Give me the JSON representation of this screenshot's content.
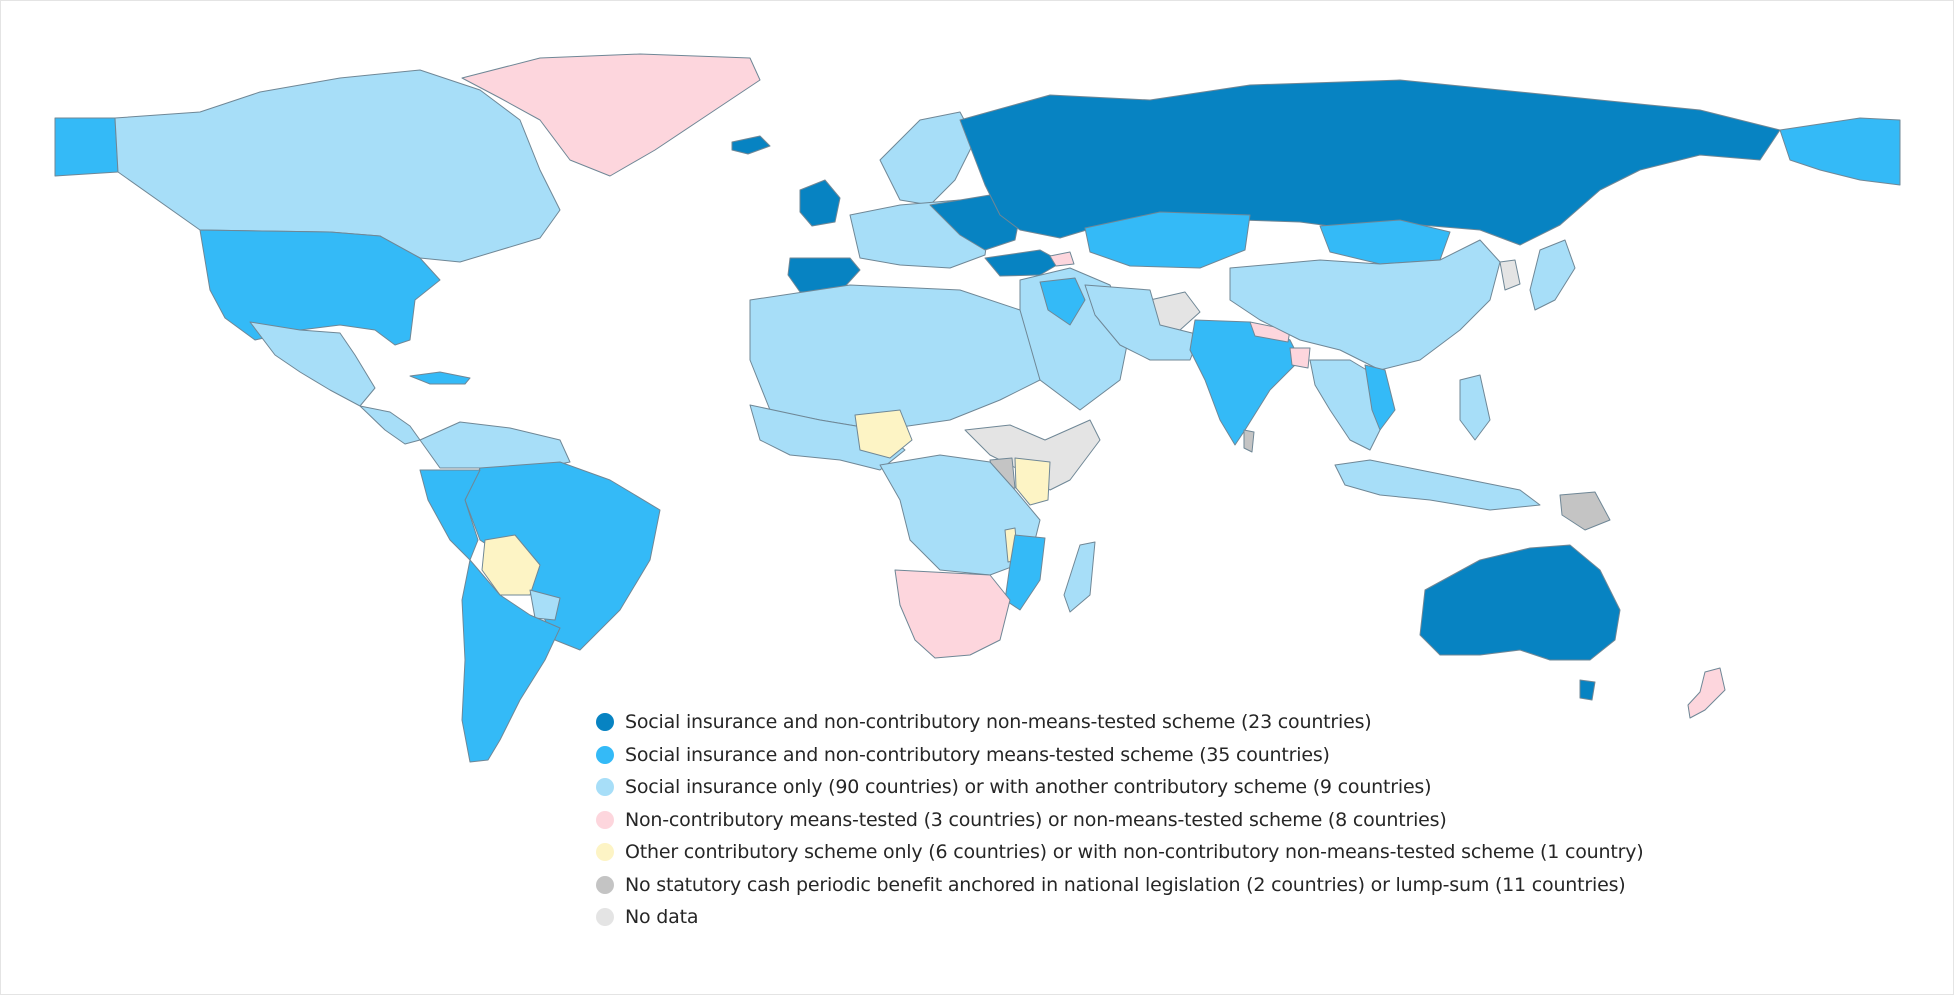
{
  "colors": {
    "c1": "#0783c2",
    "c2": "#34baf7",
    "c3": "#a7def8",
    "c4": "#fdd6dd",
    "c5": "#fdf4c5",
    "c6": "#c4c4c4",
    "c7": "#e4e4e4"
  },
  "legend": [
    {
      "label": "Social insurance and non-contributory non-means-tested scheme (23 countries)",
      "color": "#0783c2"
    },
    {
      "label": "Social insurance and non-contributory means-tested scheme (35 countries)",
      "color": "#34baf7"
    },
    {
      "label": "Social insurance only (90 countries) or with another contributory scheme (9 countries)",
      "color": "#a7def8"
    },
    {
      "label": "Non-contributory means-tested (3 countries) or non-means-tested scheme (8 countries)",
      "color": "#fdd6dd"
    },
    {
      "label": "Other contributory scheme only (6 countries) or with non-contributory non-means-tested scheme (1 country)",
      "color": "#fdf4c5"
    },
    {
      "label": "No statutory cash periodic benefit anchored in national legislation (2 countries) or lump-sum (11 countries)",
      "color": "#c4c4c4"
    },
    {
      "label": "No data",
      "color": "#e4e4e4"
    }
  ]
}
